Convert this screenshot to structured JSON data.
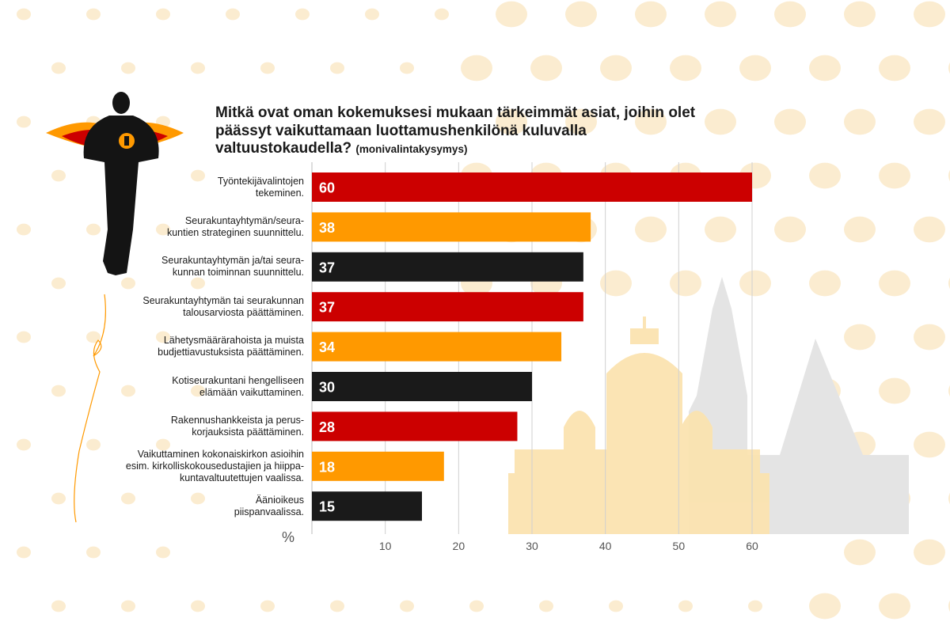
{
  "title": "Mitkä ovat oman kokemuksesi mukaan tärkeimmät asiat, joihin olet päässyt vaikuttamaan luottamushenkilönä kuluvalla valtuustokaudella?",
  "title_note": "(monivalintakysymys)",
  "colors": {
    "red": "#cc0000",
    "orange": "#ff9900",
    "black": "#1a1a1a",
    "dot": "#fbecd0",
    "church_yellow": "#fbe3b0",
    "church_grey": "#e4e4e4"
  },
  "chart_data": {
    "type": "bar",
    "orientation": "horizontal",
    "categories": [
      "Työntekijävalintojen tekeminen.",
      "Seurakuntayhtymän/seurakuntien strateginen suunnittelu.",
      "Seurakuntayhtymän ja/tai seurakunnan toiminnan suunnittelu.",
      "Seurakuntayhtymän tai seurakunnan talousarviosta päättäminen.",
      "Lähetysmäärärahoista ja muista budjettiavustuksista päättäminen.",
      "Kotiseurakuntani hengelliseen elämään vaikuttaminen.",
      "Rakennushankkeista ja peruskorjauksista päättäminen.",
      "Vaikuttaminen kokonaiskirkon asioihin esim. kirkolliskokousedustajien ja hiippakuntavaltuutettujen vaalissa.",
      "Äänioikeus piispanvaalissa."
    ],
    "category_lines": [
      [
        "Työntekijävalintojen",
        "tekeminen."
      ],
      [
        "Seurakuntayhtymän/seura-",
        "kuntien strateginen suunnittelu."
      ],
      [
        "Seurakuntayhtymän ja/tai seura-",
        "kunnan toiminnan suunnittelu."
      ],
      [
        "Seurakuntayhtymän tai seurakunnan",
        "talousarviosta päättäminen."
      ],
      [
        "Lähetysmäärärahoista ja muista",
        "budjettiavustuksista päättäminen."
      ],
      [
        "Kotiseurakuntani hengelliseen",
        "elämään vaikuttaminen."
      ],
      [
        "Rakennushankkeista ja perus-",
        "korjauksista päättäminen."
      ],
      [
        "Vaikuttaminen kokonaiskirkon asioihin",
        "esim. kirkolliskokousedustajien ja hiippa-",
        "kuntavaltuutettujen vaalissa."
      ],
      [
        "Äänioikeus",
        "piispanvaalissa."
      ]
    ],
    "values": [
      60,
      38,
      37,
      37,
      34,
      30,
      28,
      18,
      15
    ],
    "bar_colors": [
      "#cc0000",
      "#ff9900",
      "#1a1a1a",
      "#cc0000",
      "#ff9900",
      "#1a1a1a",
      "#cc0000",
      "#ff9900",
      "#1a1a1a"
    ],
    "xticks": [
      10,
      20,
      30,
      40,
      50,
      60
    ],
    "xunit": "%",
    "xlim": [
      0,
      60
    ],
    "grid": true
  }
}
